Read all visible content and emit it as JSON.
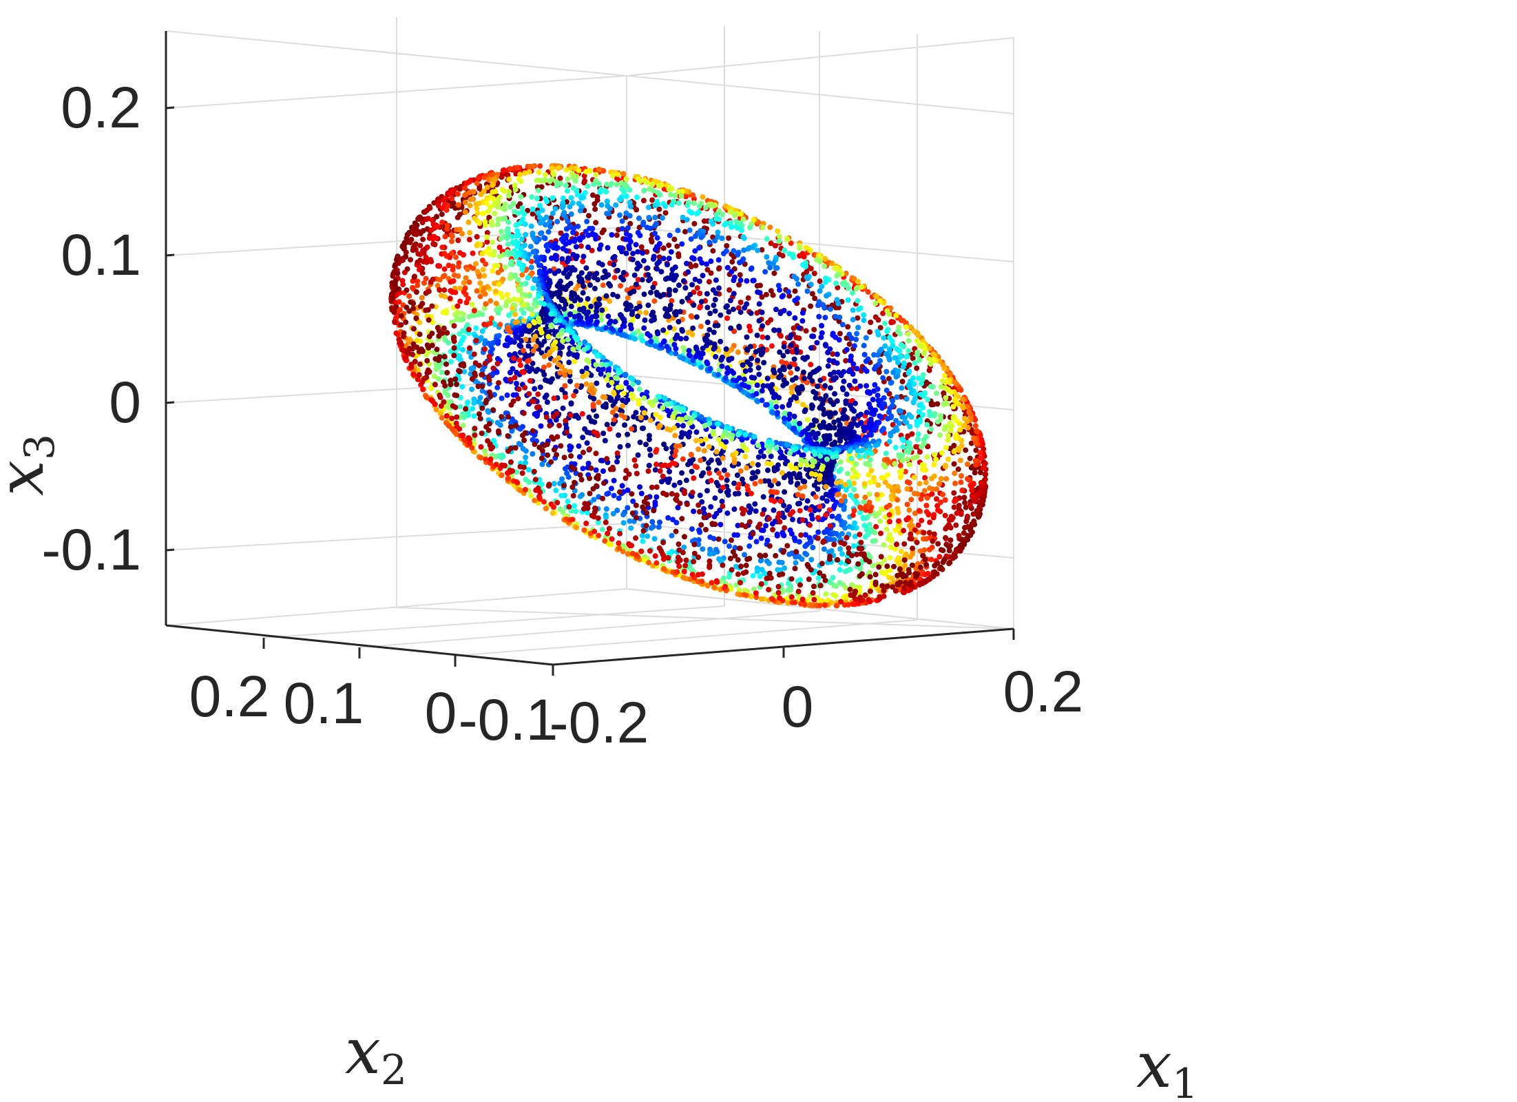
{
  "chart_data": {
    "type": "scatter",
    "projection": "3d",
    "title": "",
    "xlabel": "x",
    "xlabel_subscript": "1",
    "ylabel": "x",
    "ylabel_subscript": "2",
    "zlabel": "x",
    "zlabel_subscript": "3",
    "x_ticks": [
      "-0.2",
      "0",
      "0.2"
    ],
    "y_ticks": [
      "0.2",
      "0.1",
      "0",
      "-0.1"
    ],
    "z_ticks": [
      "0.2",
      "0.1",
      "0",
      "-0.1"
    ],
    "xlim": [
      -0.2,
      0.2
    ],
    "ylim": [
      -0.1,
      0.25
    ],
    "zlim": [
      -0.15,
      0.25
    ],
    "grid": true,
    "legend": "none",
    "colormap": "jet",
    "shape": "torus",
    "torus": {
      "center": [
        0,
        0,
        0.05
      ],
      "major_radius": 0.14,
      "minor_radius": 0.045,
      "point_count": 6500
    }
  }
}
